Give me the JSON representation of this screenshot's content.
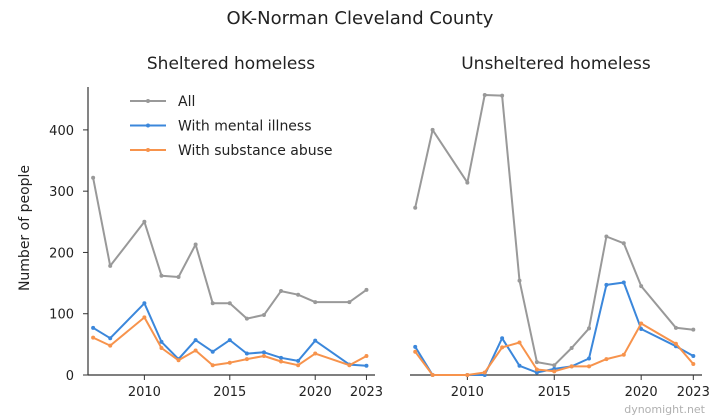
{
  "figure": {
    "title": "OK-Norman Cleveland County",
    "watermark": "dynomight.net"
  },
  "colors": {
    "All": "#999999",
    "With mental illness": "#3b87db",
    "With substance abuse": "#f7934c",
    "axis": "#333333",
    "text": "#222222"
  },
  "chart_data": [
    {
      "type": "line",
      "title": "Sheltered homeless",
      "xlabel": "",
      "ylabel": "Number of people",
      "xlim": [
        2006.7,
        2023.5
      ],
      "ylim": [
        0,
        470
      ],
      "xticks": [
        2010,
        2015,
        2020,
        2023
      ],
      "yticks": [
        0,
        100,
        200,
        300,
        400
      ],
      "grid": false,
      "legend": "top-left",
      "series": [
        {
          "name": "All",
          "x": [
            2007,
            2008,
            2010,
            2011,
            2012,
            2013,
            2014,
            2015,
            2016,
            2017,
            2018,
            2019,
            2020,
            2022,
            2023
          ],
          "y": [
            322,
            178,
            250,
            162,
            160,
            213,
            117,
            117,
            92,
            98,
            137,
            131,
            119,
            119,
            139
          ]
        },
        {
          "name": "With mental illness",
          "x": [
            2007,
            2008,
            2010,
            2011,
            2012,
            2013,
            2014,
            2015,
            2016,
            2017,
            2018,
            2019,
            2020,
            2022,
            2023
          ],
          "y": [
            77,
            60,
            117,
            54,
            26,
            57,
            38,
            57,
            35,
            37,
            28,
            23,
            56,
            17,
            15
          ]
        },
        {
          "name": "With substance abuse",
          "x": [
            2007,
            2008,
            2010,
            2011,
            2012,
            2013,
            2014,
            2015,
            2016,
            2017,
            2018,
            2019,
            2020,
            2022,
            2023
          ],
          "y": [
            61,
            48,
            94,
            44,
            24,
            40,
            16,
            20,
            26,
            31,
            22,
            16,
            35,
            16,
            31
          ]
        }
      ]
    },
    {
      "type": "line",
      "title": "Unsheltered homeless",
      "xlabel": "",
      "ylabel": "",
      "xlim": [
        2006.7,
        2023.5
      ],
      "ylim": [
        0,
        470
      ],
      "xticks": [
        2010,
        2015,
        2020,
        2023
      ],
      "yticks": [],
      "grid": false,
      "series": [
        {
          "name": "All",
          "x": [
            2007,
            2008,
            2010,
            2011,
            2012,
            2013,
            2014,
            2015,
            2016,
            2017,
            2018,
            2019,
            2020,
            2022,
            2023
          ],
          "y": [
            273,
            400,
            314,
            457,
            456,
            154,
            21,
            16,
            44,
            76,
            226,
            215,
            145,
            77,
            74
          ]
        },
        {
          "name": "With mental illness",
          "x": [
            2007,
            2008,
            2010,
            2011,
            2012,
            2013,
            2014,
            2015,
            2016,
            2017,
            2018,
            2019,
            2020,
            2022,
            2023
          ],
          "y": [
            46,
            0,
            0,
            0,
            60,
            15,
            4,
            10,
            14,
            27,
            147,
            151,
            75,
            47,
            31
          ]
        },
        {
          "name": "With substance abuse",
          "x": [
            2007,
            2008,
            2010,
            2011,
            2012,
            2013,
            2014,
            2015,
            2016,
            2017,
            2018,
            2019,
            2020,
            2022,
            2023
          ],
          "y": [
            38,
            0,
            0,
            4,
            45,
            53,
            9,
            6,
            14,
            14,
            26,
            33,
            84,
            51,
            18
          ]
        }
      ]
    }
  ]
}
